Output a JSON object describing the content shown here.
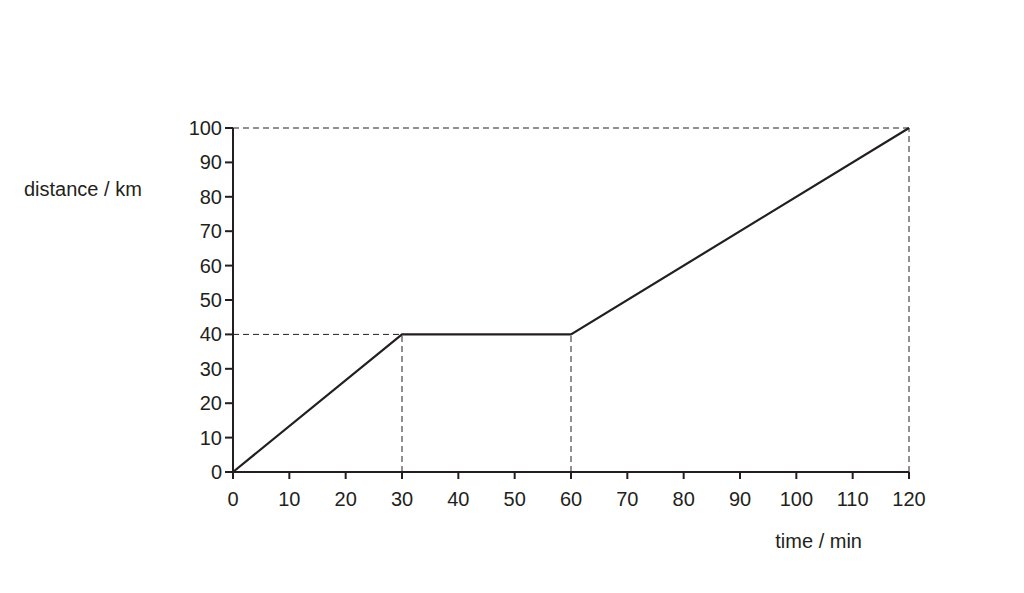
{
  "chart_data": {
    "type": "line",
    "xlabel": "time / min",
    "ylabel": "distance / km",
    "x": [
      0,
      30,
      60,
      120
    ],
    "values": [
      0,
      40,
      40,
      100
    ],
    "color": "#231f20",
    "xlim": [
      0,
      120
    ],
    "ylim": [
      0,
      100
    ],
    "xticks": [
      0,
      10,
      20,
      30,
      40,
      50,
      60,
      70,
      80,
      90,
      100,
      110,
      120
    ],
    "yticks": [
      0,
      10,
      20,
      30,
      40,
      50,
      60,
      70,
      80,
      90,
      100
    ],
    "grid": false
  }
}
